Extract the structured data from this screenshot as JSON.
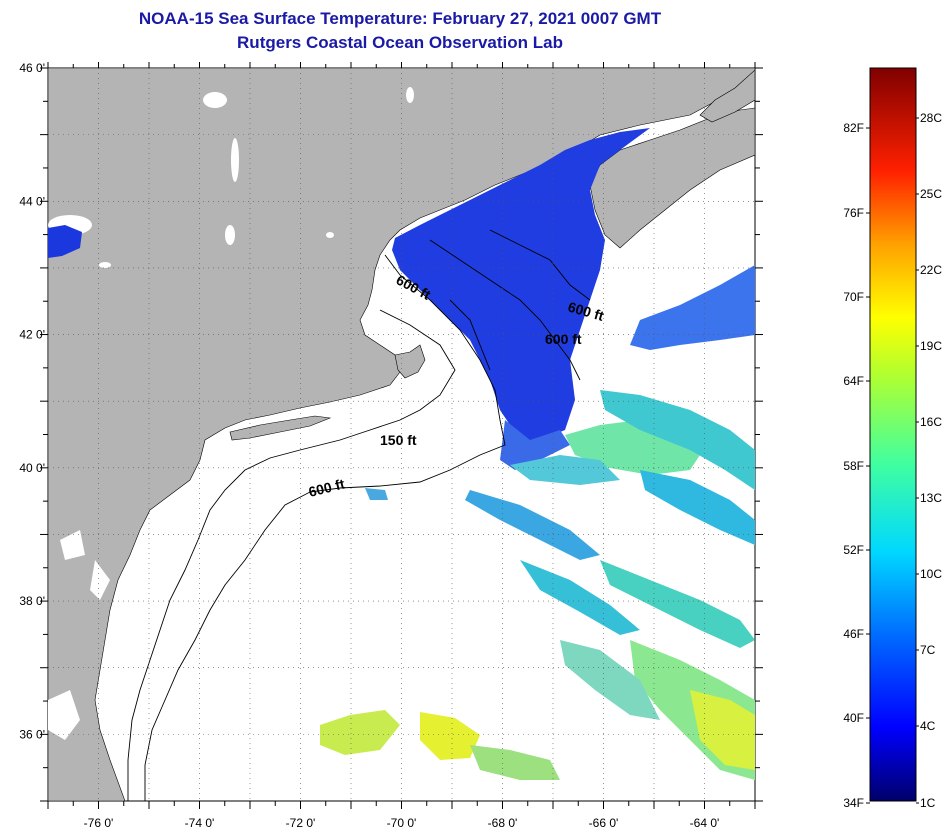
{
  "title": "NOAA-15 Sea Surface Temperature:  February 27, 2021 0007 GMT",
  "subtitle": "Rutgers Coastal Ocean Observation Lab",
  "axes": {
    "lat_labels": [
      "46 0'",
      "44 0'",
      "42 0'",
      "40 0'",
      "38 0'",
      "36 0'"
    ],
    "lat_values": [
      46,
      44,
      42,
      40,
      38,
      36
    ],
    "lon_labels": [
      "-76 0'",
      "-74 0'",
      "-72 0'",
      "-70 0'",
      "-68 0'",
      "-66 0'",
      "-64 0'"
    ],
    "lon_values": [
      -76,
      -74,
      -72,
      -70,
      -68,
      -66,
      -64
    ],
    "lon_range": [
      -77,
      -63
    ],
    "lat_range": [
      35,
      46
    ]
  },
  "contour_labels": {
    "a": "600 ft",
    "b": "600 ft",
    "c": "600 ft",
    "d": "150 ft",
    "e": "600 ft"
  },
  "colorbar": {
    "fahrenheit": [
      "82F",
      "76F",
      "70F",
      "64F",
      "58F",
      "52F",
      "46F",
      "40F",
      "34F"
    ],
    "celsius": [
      "28C",
      "25C",
      "22C",
      "19C",
      "16C",
      "13C",
      "10C",
      "7C",
      "4C",
      "1C"
    ],
    "colors": [
      "#00008f",
      "#0000ff",
      "#0070ff",
      "#00e0ff",
      "#70ff90",
      "#e8ff10",
      "#ffb000",
      "#ff3000",
      "#a00000",
      "#800000"
    ]
  },
  "colors": {
    "land": "#b4b4b4",
    "water": "#ffffff",
    "title": "#1a1aa6"
  }
}
